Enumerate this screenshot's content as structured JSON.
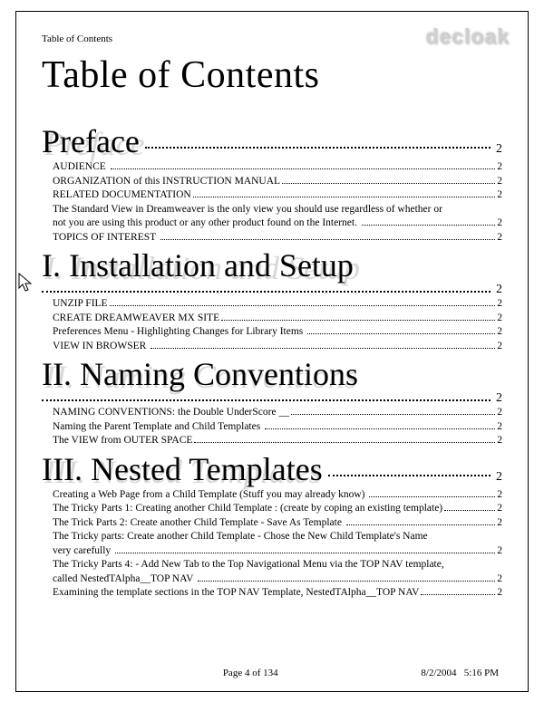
{
  "watermark": "decloak",
  "running_head": "Table of Contents",
  "main_title": "Table of Contents",
  "sections": [
    {
      "title": "Preface",
      "head_on_own_row": false,
      "page": "2",
      "entries": [
        {
          "text": "AUDIENCE ",
          "page": "2"
        },
        {
          "text": "ORGANIZATION of this INSTRUCTION MANUAL",
          "page": "2"
        },
        {
          "text": "RELATED DOCUMENTATION",
          "page": "2"
        },
        {
          "wrap": "The Standard View in Dreamweaver is the only view you should use regardless of whether or",
          "text": "not you are using this product or any other product found on the Internet. ",
          "page": "2"
        },
        {
          "text": "TOPICS OF INTEREST ",
          "page": "2"
        }
      ]
    },
    {
      "title": "I. Installation and Setup",
      "head_on_own_row": true,
      "page": "2",
      "entries": [
        {
          "text": "UNZIP FILE",
          "page": "2"
        },
        {
          "text": "CREATE DREAMWEAVER MX SITE",
          "page": "2"
        },
        {
          "text": "Preferences Menu - Highlighting Changes for Library Items ",
          "page": "2"
        },
        {
          "text": "VIEW IN BROWSER ",
          "page": "2"
        }
      ]
    },
    {
      "title": "II. Naming Conventions",
      "head_on_own_row": true,
      "page": "2",
      "entries": [
        {
          "text": "NAMING CONVENTIONS: the Double UnderScore __",
          "page": "2"
        },
        {
          "text": "Naming the Parent Template and Child Templates ",
          "page": "2"
        },
        {
          "text": "The VIEW from OUTER SPACE",
          "page": "2"
        }
      ]
    },
    {
      "title": "III. Nested Templates",
      "head_on_own_row": false,
      "page": "2",
      "entries": [
        {
          "text": "Creating a Web Page from a Child Template (Stuff you may already know) ",
          "page": "2"
        },
        {
          "text": "The Tricky Parts 1: Creating another Child Template : (create by coping an existing template)",
          "page": "2"
        },
        {
          "text": "The Trick Parts 2: Create another Child Template - Save As Template ",
          "page": "2"
        },
        {
          "wrap": "The Tricky parts: Create another Child Template - Chose the New Child Template's Name",
          "text": "very carefully ",
          "page": "2"
        },
        {
          "wrap": "The Tricky Parts 4: - Add New Tab to the Top Navigational Menu via the TOP NAV template,",
          "text": "called NestedTAlpha__TOP NAV ",
          "page": "2"
        },
        {
          "text": "Examining the template sections in the TOP NAV Template, NestedTAlpha__TOP NAV",
          "page": "2"
        }
      ]
    }
  ],
  "footer": {
    "center": "Page 4 of 134",
    "right": "8/2/2004   5:16 PM"
  }
}
